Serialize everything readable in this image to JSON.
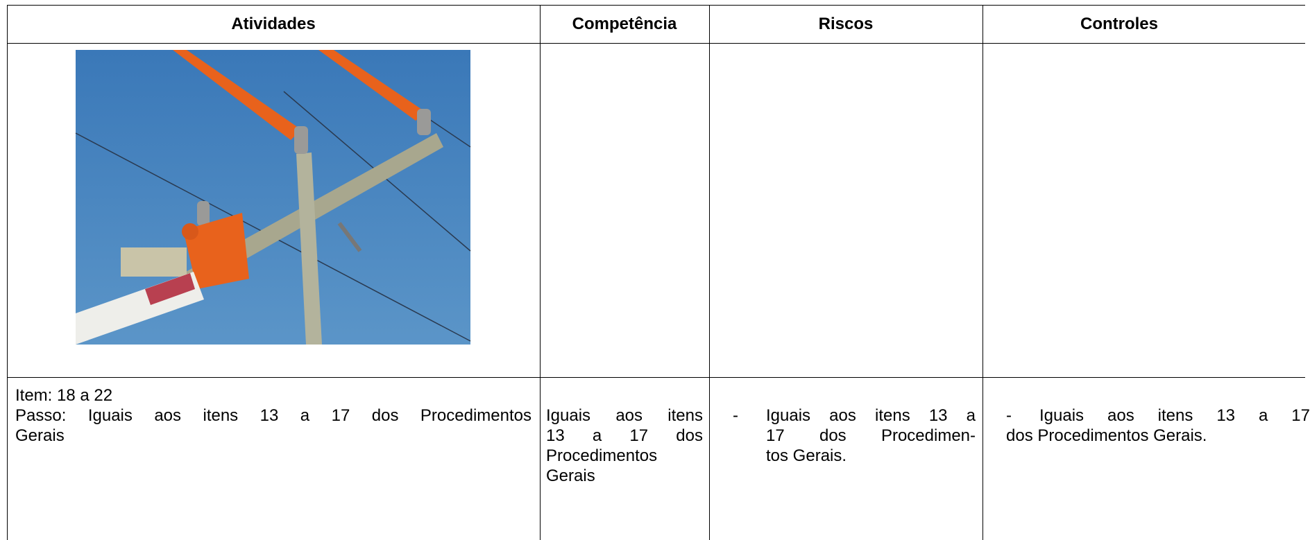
{
  "header": {
    "columns": [
      "Atividades",
      "Competência",
      "Riscos",
      "Controles"
    ]
  },
  "rows": [
    {
      "activity": {
        "item": "Item: 18 a 22",
        "step_lines": [
          "Passo: Iguais aos itens 13 a 17 dos Procedimentos",
          "Gerais"
        ]
      },
      "competence_lines": [
        "Iguais aos itens",
        "13 a 17 dos",
        "Procedimentos",
        "Gerais"
      ],
      "risks": {
        "bullet": "-",
        "lines": [
          "Iguais aos itens 13 a",
          "17 dos Procedimen-",
          "tos Gerais."
        ]
      },
      "controls": {
        "bullet": "-",
        "lines": [
          "Iguais aos itens 13 a 17",
          "dos Procedimentos Gerais."
        ]
      }
    }
  ]
}
